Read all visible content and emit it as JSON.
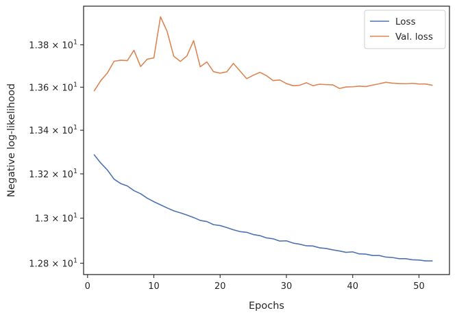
{
  "chart_data": {
    "type": "line",
    "title": "",
    "xlabel": "Epochs",
    "ylabel": "Negative log-likelihood",
    "yscale": "log",
    "xlim": [
      -0.6,
      54.6
    ],
    "ylim": [
      12.75,
      13.985
    ],
    "grid": false,
    "legend_position": "top-right",
    "x_ticks": [
      0,
      10,
      20,
      30,
      40,
      50
    ],
    "x_tick_labels": [
      "0",
      "10",
      "20",
      "30",
      "40",
      "50"
    ],
    "y_ticks": [
      12.8,
      13.0,
      13.2,
      13.4,
      13.6,
      13.8
    ],
    "y_tick_labels": [
      {
        "mantissa": "1.28",
        "times": "×",
        "base": "10",
        "exp": "1"
      },
      {
        "mantissa": "1.3",
        "times": "×",
        "base": "10",
        "exp": "1"
      },
      {
        "mantissa": "1.32",
        "times": "×",
        "base": "10",
        "exp": "1"
      },
      {
        "mantissa": "1.34",
        "times": "×",
        "base": "10",
        "exp": "1"
      },
      {
        "mantissa": "1.36",
        "times": "×",
        "base": "10",
        "exp": "1"
      },
      {
        "mantissa": "1.38",
        "times": "×",
        "base": "10",
        "exp": "1"
      }
    ],
    "x": [
      1,
      2,
      3,
      4,
      5,
      6,
      7,
      8,
      9,
      10,
      11,
      12,
      13,
      14,
      15,
      16,
      17,
      18,
      19,
      20,
      21,
      22,
      23,
      24,
      25,
      26,
      27,
      28,
      29,
      30,
      31,
      32,
      33,
      34,
      35,
      36,
      37,
      38,
      39,
      40,
      41,
      42,
      43,
      44,
      45,
      46,
      47,
      48,
      49,
      50,
      51,
      52
    ],
    "series": [
      {
        "name": "Loss",
        "color": "#4c72b0",
        "values": [
          13.287,
          13.249,
          13.217,
          13.176,
          13.156,
          13.145,
          13.124,
          13.11,
          13.09,
          13.074,
          13.06,
          13.046,
          13.033,
          13.024,
          13.014,
          13.003,
          12.99,
          12.985,
          12.971,
          12.967,
          12.958,
          12.948,
          12.94,
          12.937,
          12.927,
          12.922,
          12.912,
          12.908,
          12.898,
          12.899,
          12.889,
          12.884,
          12.877,
          12.876,
          12.868,
          12.865,
          12.859,
          12.854,
          12.848,
          12.85,
          12.841,
          12.84,
          12.834,
          12.834,
          12.827,
          12.825,
          12.82,
          12.82,
          12.815,
          12.814,
          12.81,
          12.81
        ]
      },
      {
        "name": "Val. loss",
        "color": "#dd8452",
        "values": [
          13.583,
          13.631,
          13.667,
          13.722,
          13.727,
          13.725,
          13.774,
          13.697,
          13.732,
          13.738,
          13.934,
          13.864,
          13.746,
          13.721,
          13.748,
          13.82,
          13.696,
          13.719,
          13.673,
          13.666,
          13.672,
          13.712,
          13.676,
          13.64,
          13.656,
          13.67,
          13.654,
          13.631,
          13.634,
          13.617,
          13.607,
          13.609,
          13.621,
          13.607,
          13.614,
          13.612,
          13.611,
          13.594,
          13.601,
          13.602,
          13.605,
          13.603,
          13.61,
          13.616,
          13.623,
          13.619,
          13.617,
          13.616,
          13.618,
          13.615,
          13.615,
          13.609
        ]
      }
    ]
  }
}
